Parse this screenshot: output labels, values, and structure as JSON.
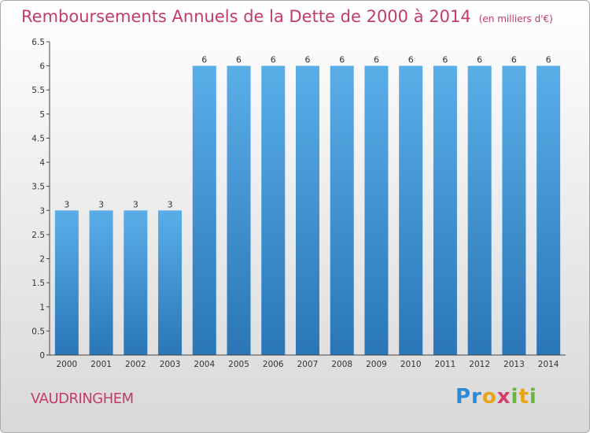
{
  "header": {
    "title": "Remboursements Annuels de la Dette de 2000 à 2014",
    "unit": "(en milliers d'€)"
  },
  "footer": {
    "commune": "VAUDRINGHEM",
    "logo_text": "Proxiti"
  },
  "chart_data": {
    "type": "bar",
    "title": "Remboursements Annuels de la Dette de 2000 à 2014",
    "subtitle": "(en milliers d'€)",
    "xlabel": "",
    "ylabel": "",
    "categories": [
      "2000",
      "2001",
      "2002",
      "2003",
      "2004",
      "2005",
      "2006",
      "2007",
      "2008",
      "2009",
      "2010",
      "2011",
      "2012",
      "2013",
      "2014"
    ],
    "values": [
      3,
      3,
      3,
      3,
      6,
      6,
      6,
      6,
      6,
      6,
      6,
      6,
      6,
      6,
      6
    ],
    "data_labels": [
      "3",
      "3",
      "3",
      "3",
      "6",
      "6",
      "6",
      "6",
      "6",
      "6",
      "6",
      "6",
      "6",
      "6",
      "6"
    ],
    "ylim": [
      0,
      6.5
    ],
    "yticks": [
      0,
      0.5,
      1,
      1.5,
      2,
      2.5,
      3,
      3.5,
      4,
      4.5,
      5,
      5.5,
      6,
      6.5
    ],
    "ytick_labels": [
      "0",
      "0.5",
      "1",
      "1.5",
      "2",
      "2.5",
      "3",
      "3.5",
      "4",
      "4.5",
      "5",
      "5.5",
      "6",
      "6.5"
    ],
    "grid": false,
    "bar_color": "#4a9fe0",
    "bar_color_dark": "#2b78b8",
    "title_color": "#c33b6b"
  }
}
